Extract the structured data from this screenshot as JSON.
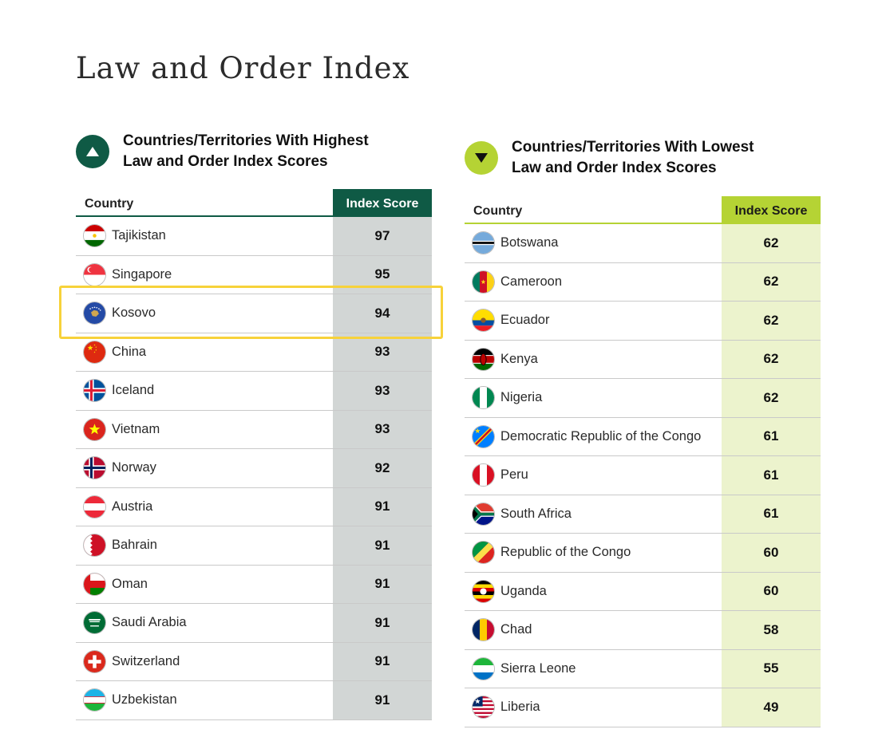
{
  "page": {
    "title": "Law and Order Index"
  },
  "highest": {
    "heading_line1": "Countries/Territories With Highest",
    "heading_line2": "Law and Order Index Scores",
    "col_country": "Country",
    "col_score": "Index Score",
    "accent": "#0f5a45",
    "rows": [
      {
        "country": "Tajikistan",
        "score": "97",
        "flag": "tajikistan-flag-icon"
      },
      {
        "country": "Singapore",
        "score": "95",
        "flag": "singapore-flag-icon"
      },
      {
        "country": "Kosovo",
        "score": "94",
        "flag": "kosovo-flag-icon"
      },
      {
        "country": "China",
        "score": "93",
        "flag": "china-flag-icon"
      },
      {
        "country": "Iceland",
        "score": "93",
        "flag": "iceland-flag-icon"
      },
      {
        "country": "Vietnam",
        "score": "93",
        "flag": "vietnam-flag-icon"
      },
      {
        "country": "Norway",
        "score": "92",
        "flag": "norway-flag-icon"
      },
      {
        "country": "Austria",
        "score": "91",
        "flag": "austria-flag-icon"
      },
      {
        "country": "Bahrain",
        "score": "91",
        "flag": "bahrain-flag-icon"
      },
      {
        "country": "Oman",
        "score": "91",
        "flag": "oman-flag-icon"
      },
      {
        "country": "Saudi Arabia",
        "score": "91",
        "flag": "saudi-arabia-flag-icon"
      },
      {
        "country": "Switzerland",
        "score": "91",
        "flag": "switzerland-flag-icon"
      },
      {
        "country": "Uzbekistan",
        "score": "91",
        "flag": "uzbekistan-flag-icon"
      }
    ]
  },
  "lowest": {
    "heading_line1": "Countries/Territories With Lowest",
    "heading_line2": "Law and Order Index Scores",
    "col_country": "Country",
    "col_score": "Index Score",
    "accent": "#b5d334",
    "rows": [
      {
        "country": "Botswana",
        "score": "62",
        "flag": "botswana-flag-icon"
      },
      {
        "country": "Cameroon",
        "score": "62",
        "flag": "cameroon-flag-icon"
      },
      {
        "country": "Ecuador",
        "score": "62",
        "flag": "ecuador-flag-icon"
      },
      {
        "country": "Kenya",
        "score": "62",
        "flag": "kenya-flag-icon"
      },
      {
        "country": "Nigeria",
        "score": "62",
        "flag": "nigeria-flag-icon"
      },
      {
        "country": "Democratic Republic of the Congo",
        "score": "61",
        "flag": "dr-congo-flag-icon"
      },
      {
        "country": "Peru",
        "score": "61",
        "flag": "peru-flag-icon"
      },
      {
        "country": "South Africa",
        "score": "61",
        "flag": "south-africa-flag-icon"
      },
      {
        "country": "Republic of the Congo",
        "score": "60",
        "flag": "congo-flag-icon"
      },
      {
        "country": "Uganda",
        "score": "60",
        "flag": "uganda-flag-icon"
      },
      {
        "country": "Chad",
        "score": "58",
        "flag": "chad-flag-icon"
      },
      {
        "country": "Sierra Leone",
        "score": "55",
        "flag": "sierra-leone-flag-icon"
      },
      {
        "country": "Liberia",
        "score": "49",
        "flag": "liberia-flag-icon"
      }
    ]
  },
  "highlight": {
    "color": "#f7d23a",
    "row": "Kosovo"
  }
}
